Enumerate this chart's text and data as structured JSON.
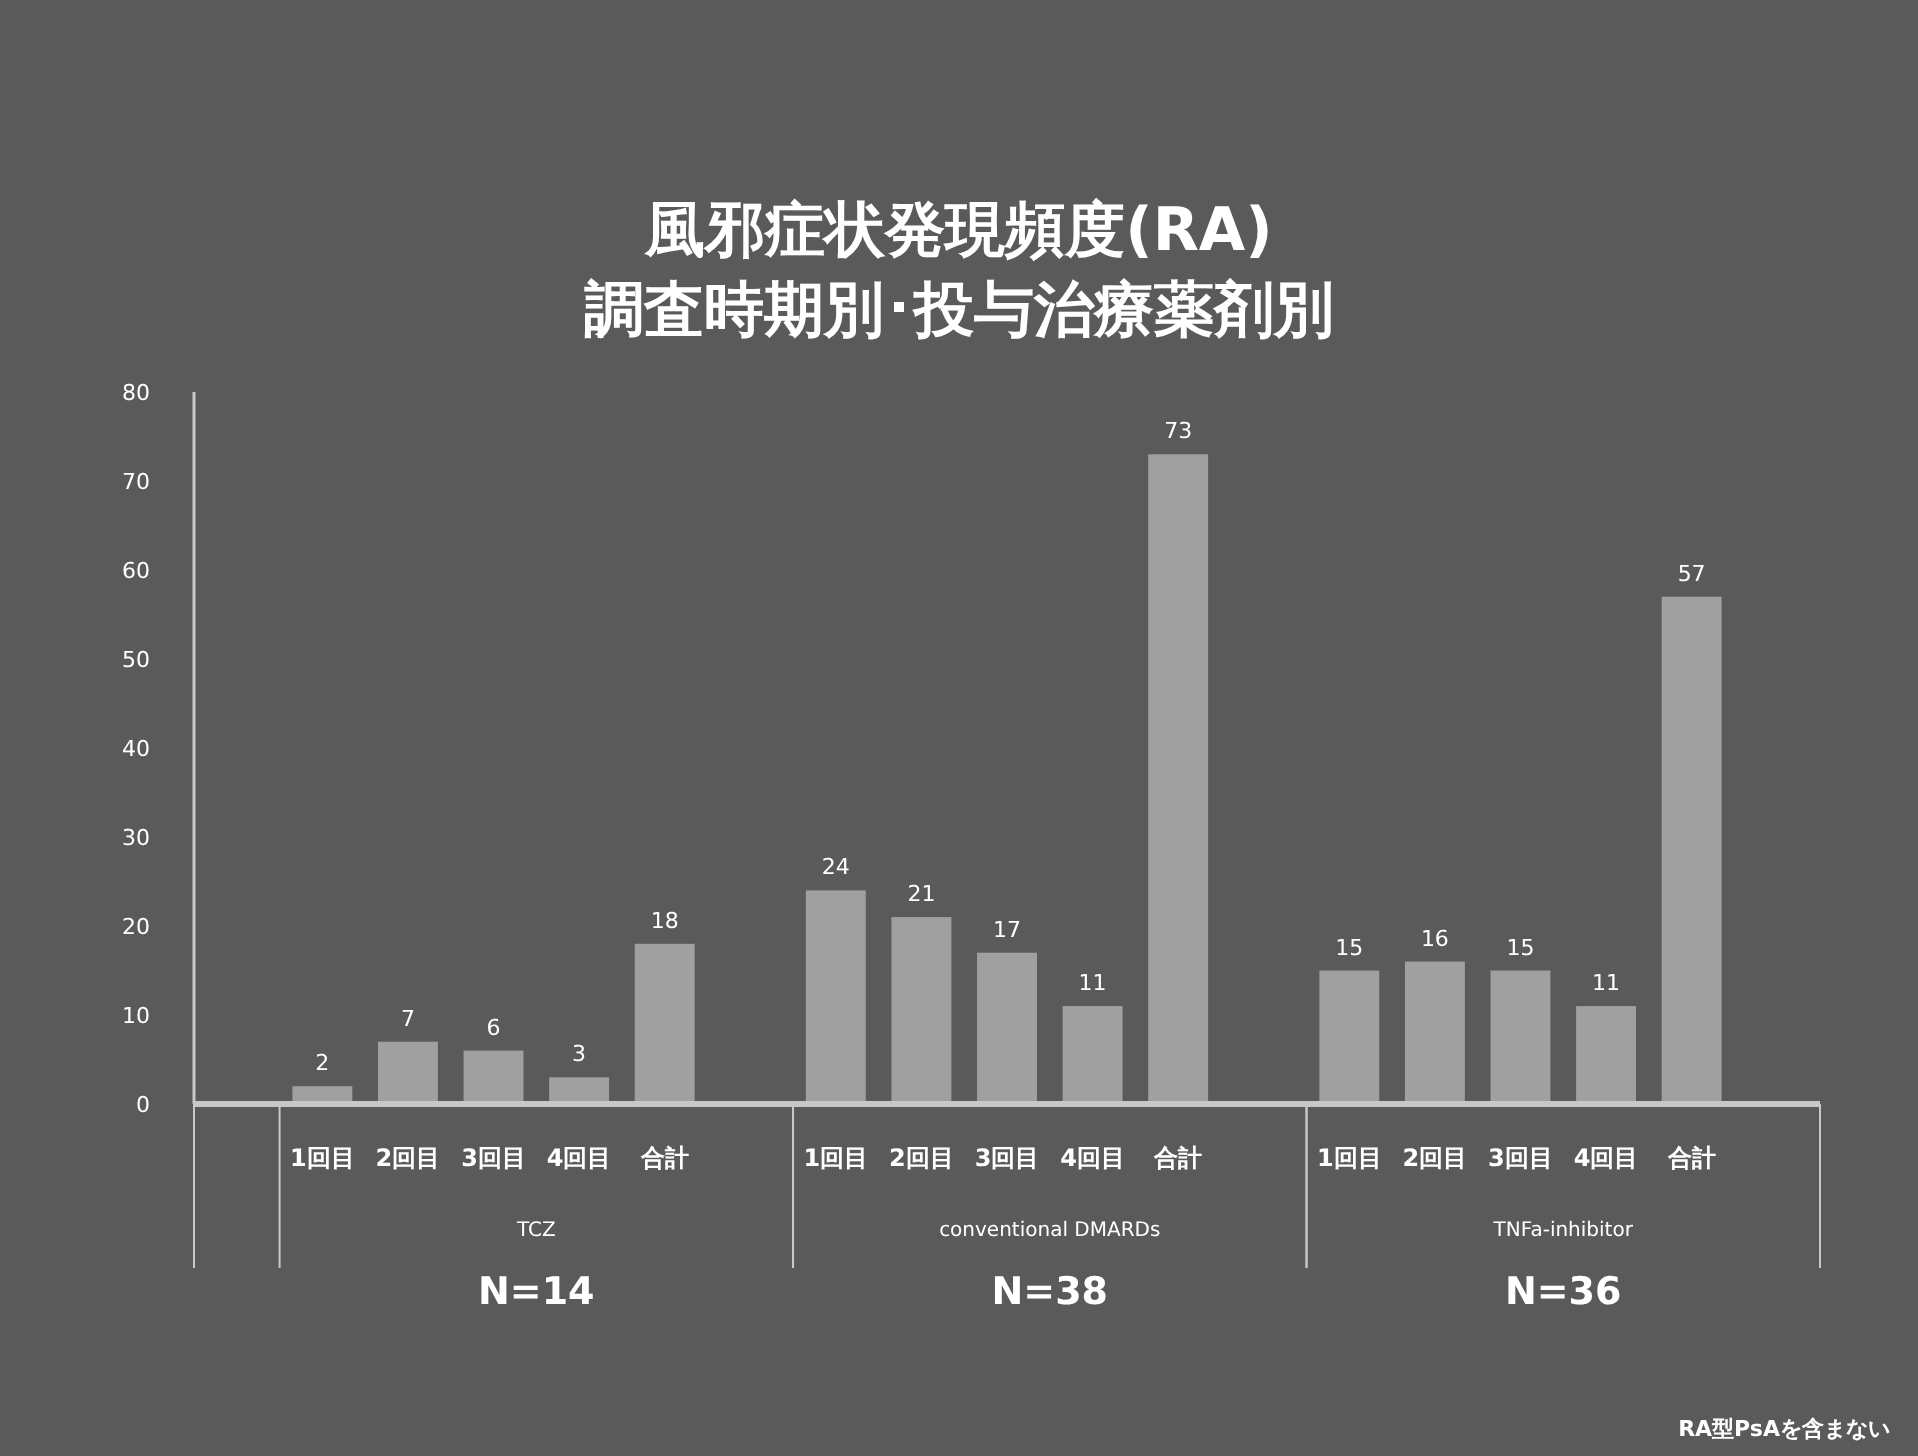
{
  "chart_data": {
    "type": "bar",
    "title": "風邪症状発現頻度(RA)",
    "subtitle": "調査時期別･投与治療薬剤別",
    "categories": [
      null,
      "1回目",
      "2回目",
      "3回目",
      "4回目",
      "合計",
      null,
      "1回目",
      "2回目",
      "3回目",
      "4回目",
      "合計",
      null,
      "1回目",
      "2回目",
      "3回目",
      "4回目",
      "合計",
      null
    ],
    "values": [
      null,
      2,
      7,
      6,
      3,
      18,
      null,
      24,
      21,
      17,
      11,
      73,
      null,
      15,
      16,
      15,
      11,
      57,
      null
    ],
    "color": "#a0a0a0",
    "data_labels": true,
    "grid": false,
    "ylim": [
      0,
      80
    ],
    "yticks": [
      0,
      10,
      20,
      30,
      40,
      50,
      60,
      70,
      80
    ],
    "annotations": [
      "TCZ",
      "conventional DMARDs",
      "TNFa-inhibitor",
      "N=14",
      "N=38",
      "N=36",
      "RA型PsAを含まない"
    ]
  }
}
